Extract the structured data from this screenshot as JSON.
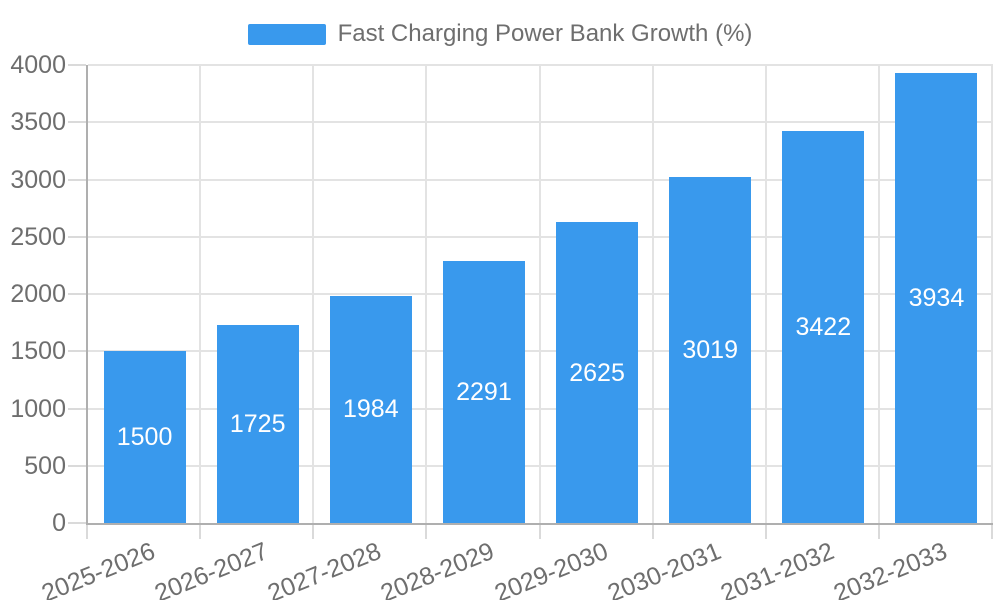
{
  "chart_data": {
    "type": "bar",
    "title": "Fast Charging Power Bank Growth (%)",
    "legend_position": "top",
    "categories": [
      "2025-2026",
      "2026-2027",
      "2027-2028",
      "2028-2029",
      "2029-2030",
      "2030-2031",
      "2031-2032",
      "2032-2033"
    ],
    "values": [
      1500,
      1725,
      1984,
      2291,
      2625,
      3019,
      3422,
      3934
    ],
    "ylim": [
      0,
      4000
    ],
    "yticks": [
      0,
      500,
      1000,
      1500,
      2000,
      2500,
      3000,
      3500,
      4000
    ],
    "grid": true,
    "x_label_rotation_deg": -22,
    "bar_color": "#3999ED",
    "value_label_color": "#FFFFFF",
    "axis_text_color": "#6E6E6E",
    "grid_color": "#E3E3E3",
    "axis_line_color": "#AFAFAF"
  }
}
